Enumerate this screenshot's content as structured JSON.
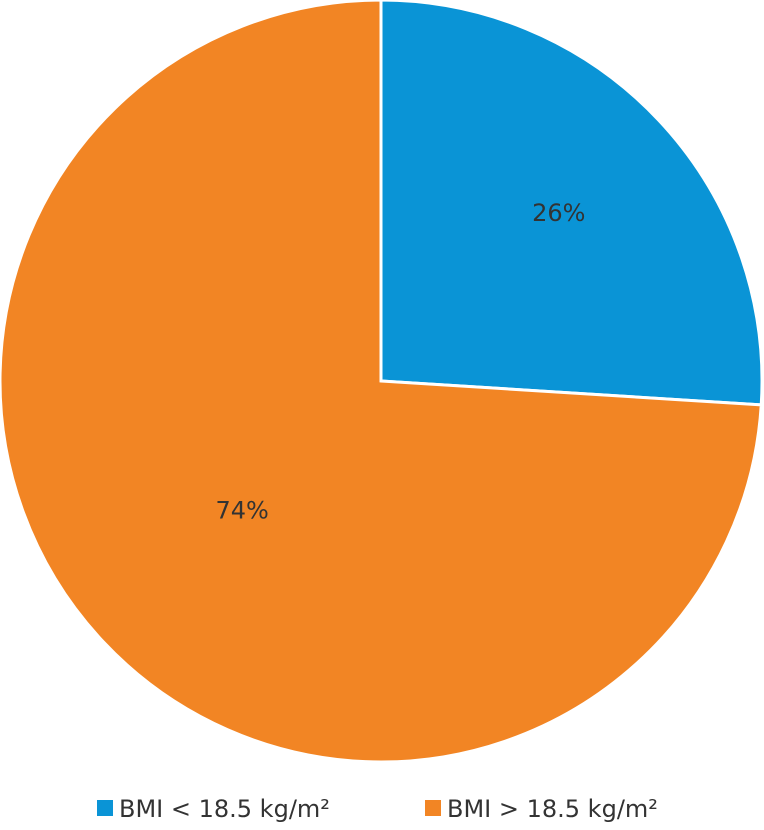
{
  "chart_data": {
    "type": "pie",
    "categories": [
      "BMI < 18.5 kg/m²",
      "BMI > 18.5 kg/m²"
    ],
    "values": [
      26,
      74
    ],
    "value_labels": [
      "26%",
      "74%"
    ],
    "colors": [
      "#0a94d6",
      "#f28524"
    ]
  }
}
